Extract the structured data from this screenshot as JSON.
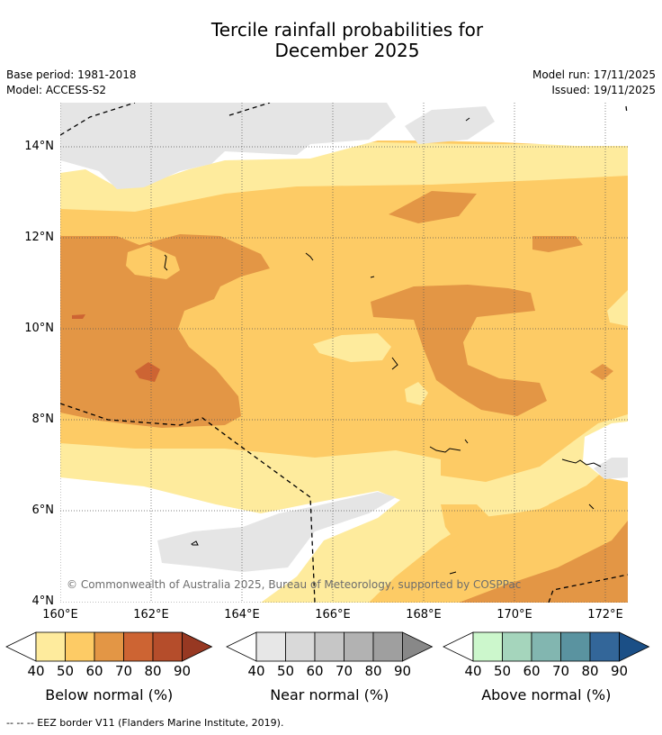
{
  "title": {
    "line1": "Tercile rainfall probabilities for",
    "line2": "December 2025"
  },
  "meta": {
    "base_period": "Base period: 1981-2018",
    "model": "Model: ACCESS-S2",
    "model_run": "Model run: 17/11/2025",
    "issued": "Issued: 19/11/2025"
  },
  "map": {
    "lat_ticks": [
      "14°N",
      "12°N",
      "10°N",
      "8°N",
      "6°N",
      "4°N"
    ],
    "lon_ticks": [
      "160°E",
      "162°E",
      "164°E",
      "166°E",
      "168°E",
      "170°E",
      "172°E"
    ],
    "copyright": "© Commonwealth of Australia 2025, Bureau of Meteorology, supported by COSPPac"
  },
  "colorbars": [
    {
      "label": "Below normal (%)",
      "ticks": [
        "40",
        "50",
        "60",
        "70",
        "80",
        "90"
      ],
      "colors": [
        "#ffffff",
        "#feeb9d",
        "#fdcb65",
        "#e39645",
        "#cd6433",
        "#b54d2b",
        "#973822"
      ]
    },
    {
      "label": "Near normal (%)",
      "ticks": [
        "40",
        "50",
        "60",
        "70",
        "80",
        "90"
      ],
      "colors": [
        "#ffffff",
        "#e7e7e7",
        "#d9d9d9",
        "#c6c6c6",
        "#b2b2b2",
        "#9f9f9f",
        "#888888"
      ]
    },
    {
      "label": "Above normal (%)",
      "ticks": [
        "40",
        "50",
        "60",
        "70",
        "80",
        "90"
      ],
      "colors": [
        "#ffffff",
        "#ccf7cc",
        "#a5d5bc",
        "#82b6b0",
        "#5a93a0",
        "#336699",
        "#1b4f86"
      ]
    }
  ],
  "footnote": "--  --  -- EEZ border V11 (Flanders Marine Institute, 2019)."
}
